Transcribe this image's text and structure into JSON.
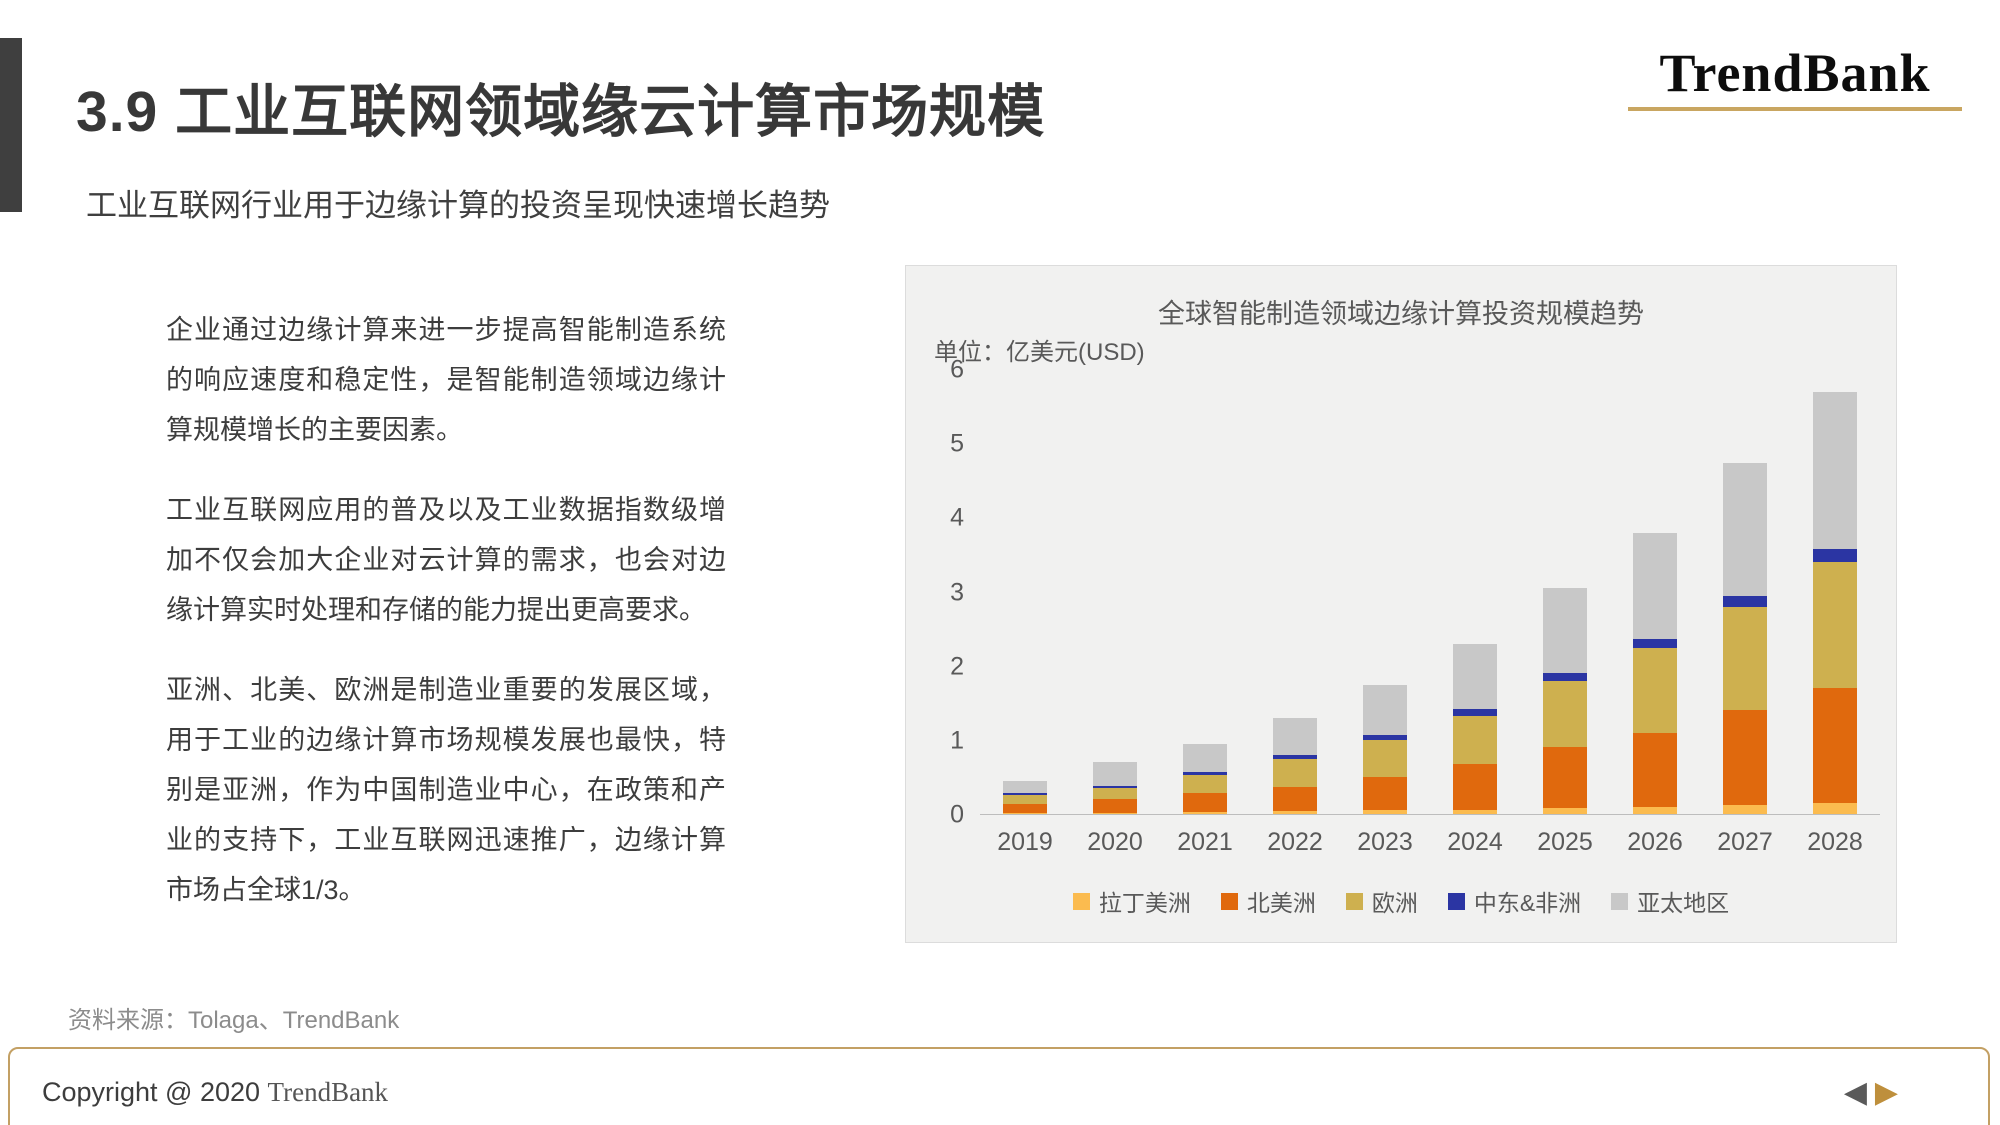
{
  "slide": {
    "title": "3.9 工业互联网领域缘云计算市场规模",
    "subtitle": "工业互联网行业用于边缘计算的投资呈现快速增长趋势",
    "logo": "TrendBank",
    "paragraphs": [
      "企业通过边缘计算来进一步提高智能制造系统的响应速度和稳定性，是智能制造领域边缘计算规模增长的主要因素。",
      "工业互联网应用的普及以及工业数据指数级增加不仅会加大企业对云计算的需求，也会对边缘计算实时处理和存储的能力提出更高要求。",
      "亚洲、北美、欧洲是制造业重要的发展区域，用于工业的边缘计算市场规模发展也最快，特别是亚洲，作为中国制造业中心，在政策和产业的支持下，工业互联网迅速推广，边缘计算市场占全球1/3。"
    ],
    "source": "资料来源：Tolaga、TrendBank",
    "footer": {
      "copyright_prefix": "Copyright @ 2020",
      "copyright_brand": "TrendBank",
      "prev_icon": "◀",
      "next_icon": "▶"
    }
  },
  "chart_data": {
    "type": "bar",
    "stacked": true,
    "title": "全球智能制造领域边缘计算投资规模趋势",
    "unit_label": "单位：亿美元(USD)",
    "categories": [
      "2019",
      "2020",
      "2021",
      "2022",
      "2023",
      "2024",
      "2025",
      "2026",
      "2027",
      "2028"
    ],
    "series": [
      {
        "name": "拉丁美洲",
        "color": "#FBBB4F",
        "values": [
          0.02,
          0.02,
          0.03,
          0.04,
          0.05,
          0.06,
          0.08,
          0.1,
          0.12,
          0.15
        ]
      },
      {
        "name": "北美洲",
        "color": "#E0690D",
        "values": [
          0.12,
          0.18,
          0.25,
          0.33,
          0.45,
          0.62,
          0.82,
          1.0,
          1.28,
          1.55
        ]
      },
      {
        "name": "欧洲",
        "color": "#CEB04F",
        "values": [
          0.12,
          0.15,
          0.25,
          0.38,
          0.5,
          0.65,
          0.9,
          1.15,
          1.4,
          1.7
        ]
      },
      {
        "name": "中东&非洲",
        "color": "#2B35A3",
        "values": [
          0.02,
          0.03,
          0.04,
          0.05,
          0.07,
          0.09,
          0.1,
          0.12,
          0.15,
          0.18
        ]
      },
      {
        "name": "亚太地区",
        "color": "#C8C8C8",
        "values": [
          0.17,
          0.32,
          0.38,
          0.5,
          0.68,
          0.88,
          1.15,
          1.43,
          1.8,
          2.12
        ]
      }
    ],
    "ylim": [
      0,
      6
    ],
    "yticks": [
      0,
      1,
      2,
      3,
      4,
      5,
      6
    ],
    "xlabel": "",
    "ylabel": "",
    "grid": false,
    "legend_position": "bottom"
  },
  "colors": {
    "accent_dark": "#3F3F3F",
    "brand_gold": "#C9A661",
    "footer_border": "#C3A064",
    "arrow_left": "#5A5A5A",
    "arrow_right": "#BE8F3C",
    "chart_panel_bg": "#F1F1F0"
  }
}
